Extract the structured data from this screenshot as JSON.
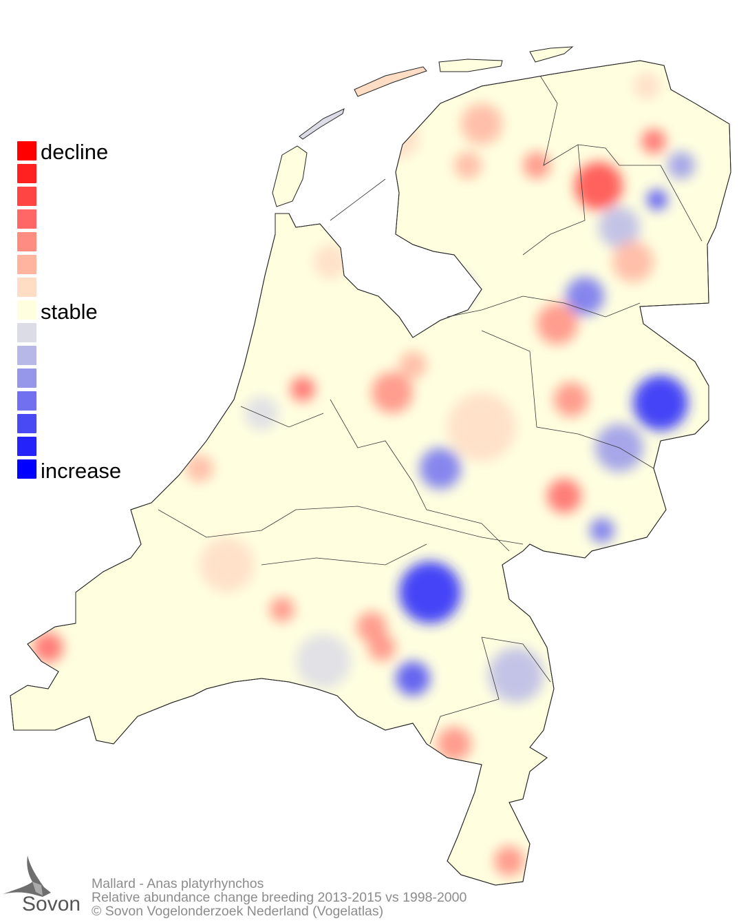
{
  "legend": {
    "label_top": "decline",
    "label_mid": "stable",
    "label_bottom": "increase",
    "colors": [
      "#ff0000",
      "#ff2020",
      "#ff4444",
      "#ff6666",
      "#ff8c80",
      "#ffb4a0",
      "#ffdcc4",
      "#ffffe0",
      "#dcdce6",
      "#b8b8e8",
      "#9696ea",
      "#7070f0",
      "#4a4af5",
      "#2424fa",
      "#0000ff"
    ]
  },
  "footer": {
    "species": "Mallard - Anas platyrhynchos",
    "description": "Relative abundance change breeding 2013-2015 vs 1998-2000",
    "copyright": "© Sovon Vogelonderzoek Nederland (Vogelatlas)"
  },
  "logo": {
    "text": "Sovon"
  }
}
